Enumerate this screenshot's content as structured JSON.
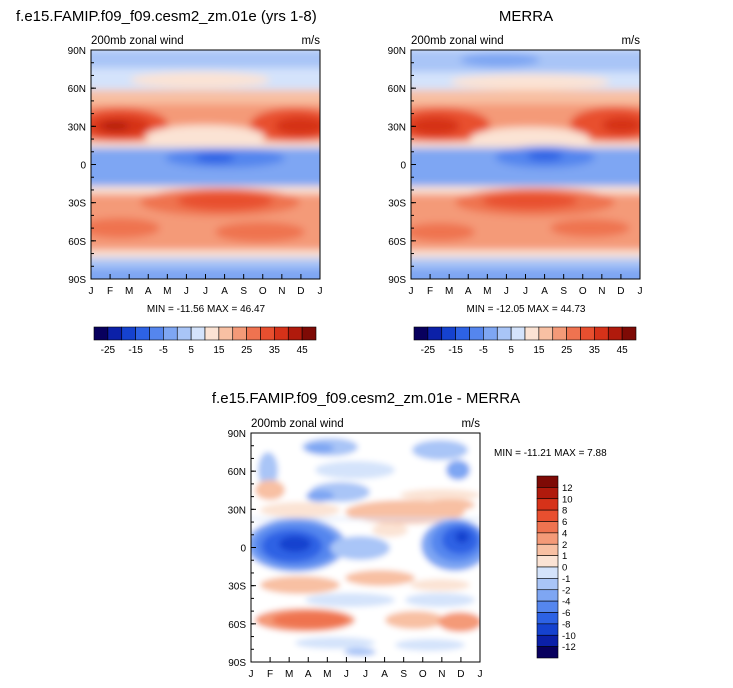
{
  "chart_data": [
    {
      "type": "heatmap",
      "title": "f.e15.FAMIP.f09_f09.cesm2_zm.01e (yrs 1-8)",
      "subtitle_left": "200mb zonal wind",
      "subtitle_right": "m/s",
      "x_ticks": [
        "J",
        "F",
        "M",
        "A",
        "M",
        "J",
        "J",
        "A",
        "S",
        "O",
        "N",
        "D",
        "J"
      ],
      "y_ticks": [
        "90N",
        "60N",
        "30N",
        "0",
        "30S",
        "60S",
        "90S"
      ],
      "y_values": [
        90,
        60,
        30,
        0,
        -30,
        -60,
        -90
      ],
      "ylim": [
        -90,
        90
      ],
      "stats": "MIN = -11.56 MAX =  46.47",
      "min": -11.56,
      "max": 46.47,
      "colorbar_labels": [
        "-25",
        "-15",
        "-5",
        "5",
        "15",
        "25",
        "35",
        "45"
      ]
    },
    {
      "type": "heatmap",
      "title": "MERRA",
      "subtitle_left": "200mb zonal wind",
      "subtitle_right": "m/s",
      "x_ticks": [
        "J",
        "F",
        "M",
        "A",
        "M",
        "J",
        "J",
        "A",
        "S",
        "O",
        "N",
        "D",
        "J"
      ],
      "y_ticks": [
        "90N",
        "60N",
        "30N",
        "0",
        "30S",
        "60S",
        "90S"
      ],
      "y_values": [
        90,
        60,
        30,
        0,
        -30,
        -60,
        -90
      ],
      "ylim": [
        -90,
        90
      ],
      "stats": "MIN = -12.05 MAX =  44.73",
      "min": -12.05,
      "max": 44.73,
      "colorbar_labels": [
        "-25",
        "-15",
        "-5",
        "5",
        "15",
        "25",
        "35",
        "45"
      ]
    },
    {
      "type": "heatmap",
      "title": "f.e15.FAMIP.f09_f09.cesm2_zm.01e - MERRA",
      "subtitle_left": "200mb zonal wind",
      "subtitle_right": "m/s",
      "x_ticks": [
        "J",
        "F",
        "M",
        "A",
        "M",
        "J",
        "J",
        "A",
        "S",
        "O",
        "N",
        "D",
        "J"
      ],
      "y_ticks": [
        "90N",
        "60N",
        "30N",
        "0",
        "30S",
        "60S",
        "90S"
      ],
      "y_values": [
        90,
        60,
        30,
        0,
        -30,
        -60,
        -90
      ],
      "ylim": [
        -90,
        90
      ],
      "stats": "MIN = -11.21 MAX =   7.88",
      "min": -11.21,
      "max": 7.88,
      "colorbar_labels": [
        "12",
        "10",
        "8",
        "6",
        "4",
        "2",
        "1",
        "0",
        "-1",
        "-2",
        "-4",
        "-6",
        "-8",
        "-10",
        "-12"
      ]
    }
  ],
  "colors": {
    "abs_scale": [
      "#08005e",
      "#0b20a8",
      "#1542cf",
      "#2d62e4",
      "#5586ee",
      "#7ea6f3",
      "#a9c5f7",
      "#d4e3fb",
      "#fbe3d4",
      "#f8c0a3",
      "#f49a78",
      "#ef7350",
      "#e84f2f",
      "#d63219",
      "#b01a0c",
      "#7e0a05"
    ],
    "diff_scale": [
      "#7e0a05",
      "#b01a0c",
      "#d63219",
      "#e84f2f",
      "#ef7350",
      "#f49a78",
      "#f8c0a3",
      "#fbe3d4",
      "#d4e3fb",
      "#a9c5f7",
      "#7ea6f3",
      "#5586ee",
      "#2d62e4",
      "#1542cf",
      "#0b20a8",
      "#08005e"
    ]
  }
}
